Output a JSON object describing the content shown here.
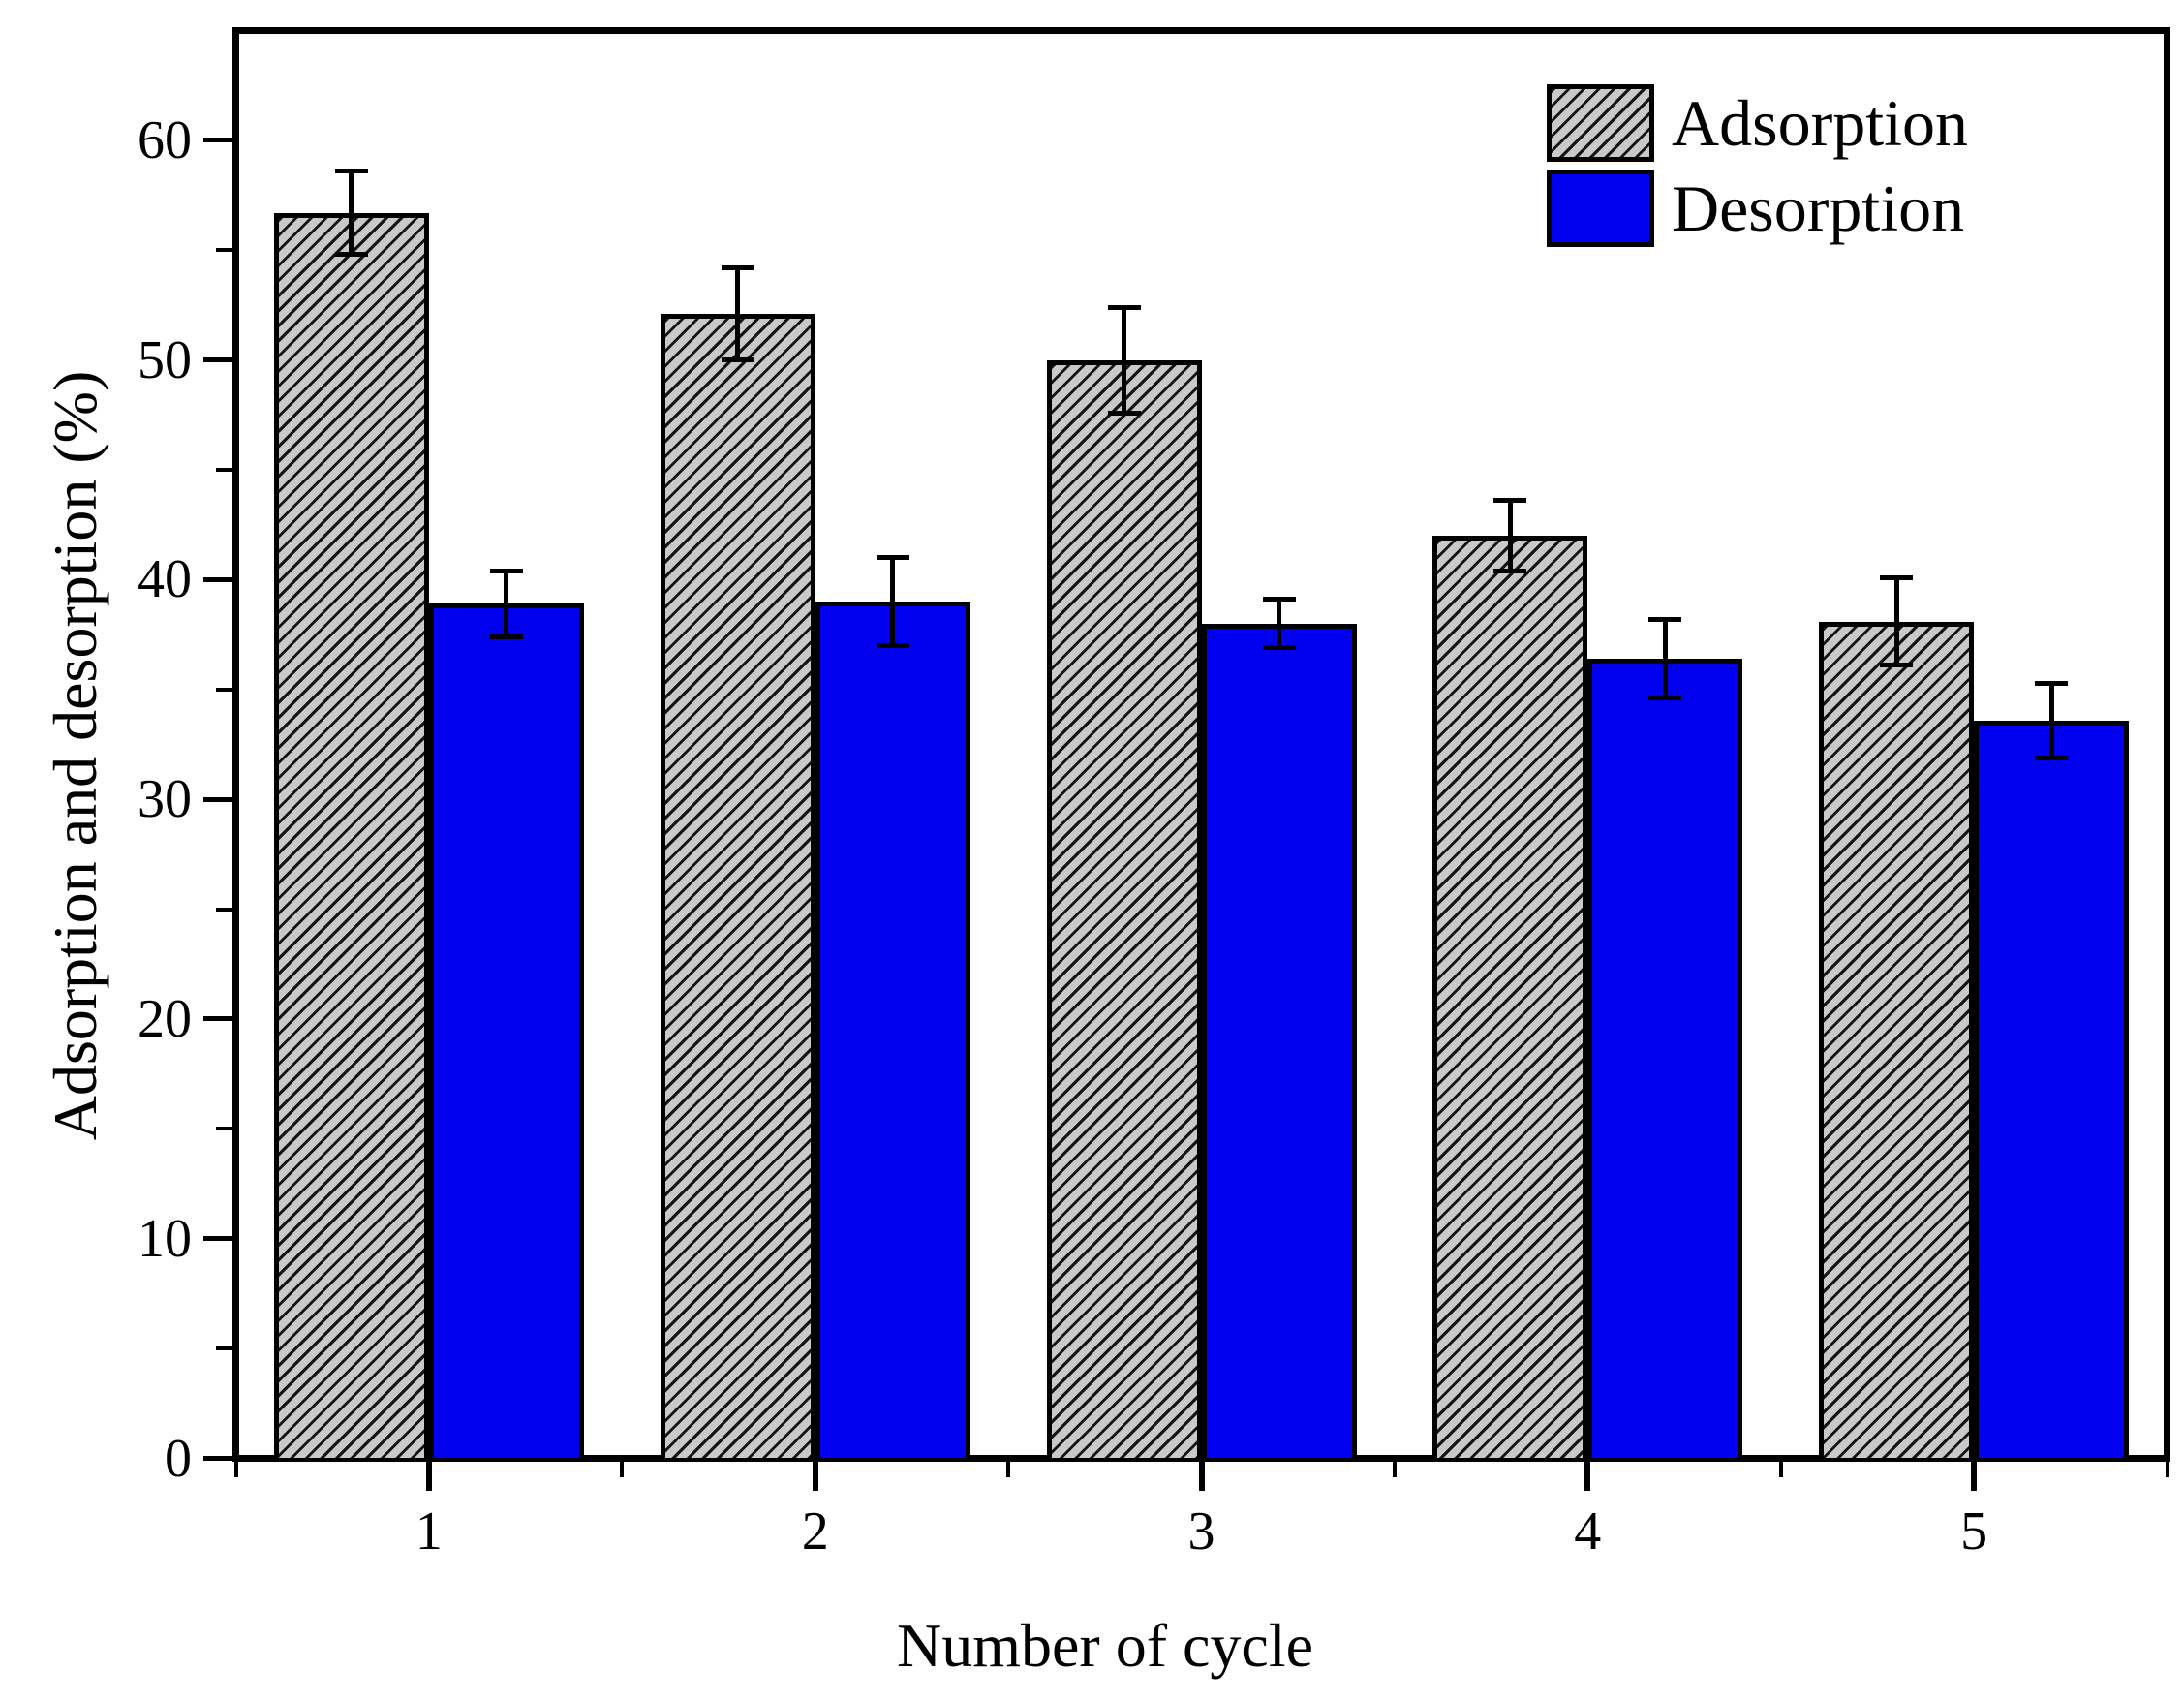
{
  "chart_data": {
    "type": "bar",
    "title": "",
    "xlabel": "Number of cycle",
    "ylabel": "Adsorption and desorption (%)",
    "categories": [
      "1",
      "2",
      "3",
      "4",
      "5"
    ],
    "series": [
      {
        "name": "Adsorption",
        "values": [
          56.7,
          52.1,
          50.0,
          42.0,
          38.1
        ],
        "error_bars": [
          1.9,
          2.1,
          2.4,
          1.6,
          2.0
        ],
        "fill_style": "gray-diagonal-hatch",
        "fill_color": "#c9c9c9",
        "hatch_color": "#141414"
      },
      {
        "name": "Desorption",
        "values": [
          38.9,
          39.0,
          38.0,
          36.4,
          33.6
        ],
        "error_bars": [
          1.5,
          2.0,
          1.1,
          1.8,
          1.7
        ],
        "fill_style": "solid",
        "fill_color": "#0000ee"
      }
    ],
    "ylim": [
      0,
      65
    ],
    "xlim": [
      0.5,
      5.5
    ],
    "y_major_ticks": [
      0,
      10,
      20,
      30,
      40,
      50,
      60
    ],
    "y_minor_ticks": [
      5,
      15,
      25,
      35,
      45,
      55
    ],
    "x_major_ticks": [
      1,
      2,
      3,
      4,
      5
    ],
    "x_minor_ticks": [
      0.5,
      1.5,
      2.5,
      3.5,
      4.5,
      5.5
    ],
    "legend": {
      "position": "top-right"
    },
    "grid": false,
    "bar_outline_color": "#000000",
    "error_bar_color": "#000000",
    "axis_color": "#000000",
    "background_color": "#ffffff"
  }
}
